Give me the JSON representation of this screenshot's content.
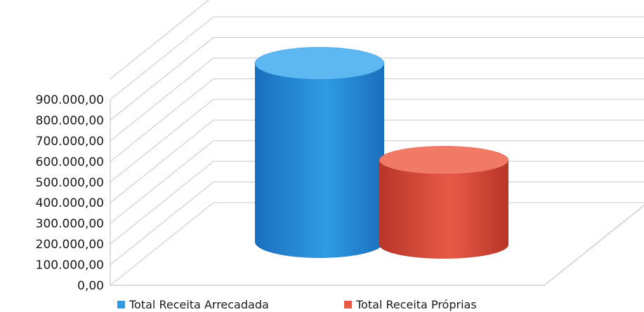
{
  "chart_data": {
    "type": "bar",
    "style": "3d-cylinder",
    "ylim": [
      0,
      900000
    ],
    "y_ticks": [
      "0,00",
      "100.000,00",
      "200.000,00",
      "300.000,00",
      "400.000,00",
      "500.000,00",
      "600.000,00",
      "700.000,00",
      "800.000,00",
      "900.000,00"
    ],
    "grid": true,
    "legend_position": "bottom",
    "series": [
      {
        "name": "Total Receita Arrecadada",
        "value": 930000,
        "color": "#2e9be3",
        "dark": "#1a6fbd",
        "light": "#5db8f2"
      },
      {
        "name": "Total Receita Próprias",
        "value": 440000,
        "color": "#e85a47",
        "dark": "#b83528",
        "light": "#f07a66"
      }
    ]
  }
}
